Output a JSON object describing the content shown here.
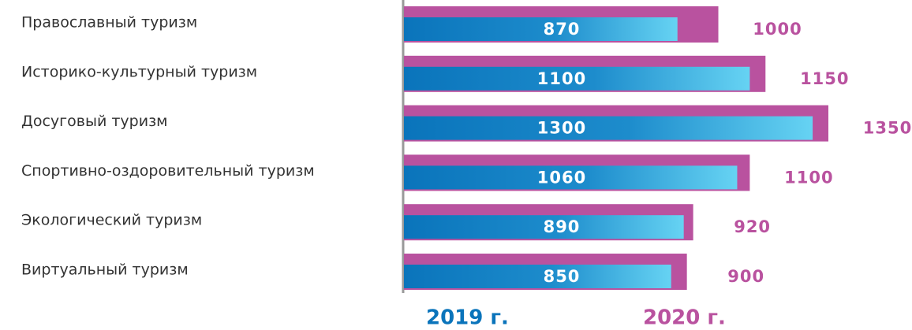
{
  "chart_data": {
    "type": "bar",
    "orientation": "horizontal",
    "categories": [
      "Православный туризм",
      "Историко-культурный туризм",
      "Досуговый туризм",
      "Спортивно-оздоровительный туризм",
      "Экологический туризм",
      "Виртуальный туризм"
    ],
    "series": [
      {
        "name": "2019 г.",
        "color": "#0a74bb",
        "values": [
          870,
          1100,
          1300,
          1060,
          890,
          850
        ]
      },
      {
        "name": "2020 г.",
        "color": "#b9529f",
        "values": [
          1000,
          1150,
          1350,
          1100,
          920,
          900
        ]
      }
    ]
  }
}
